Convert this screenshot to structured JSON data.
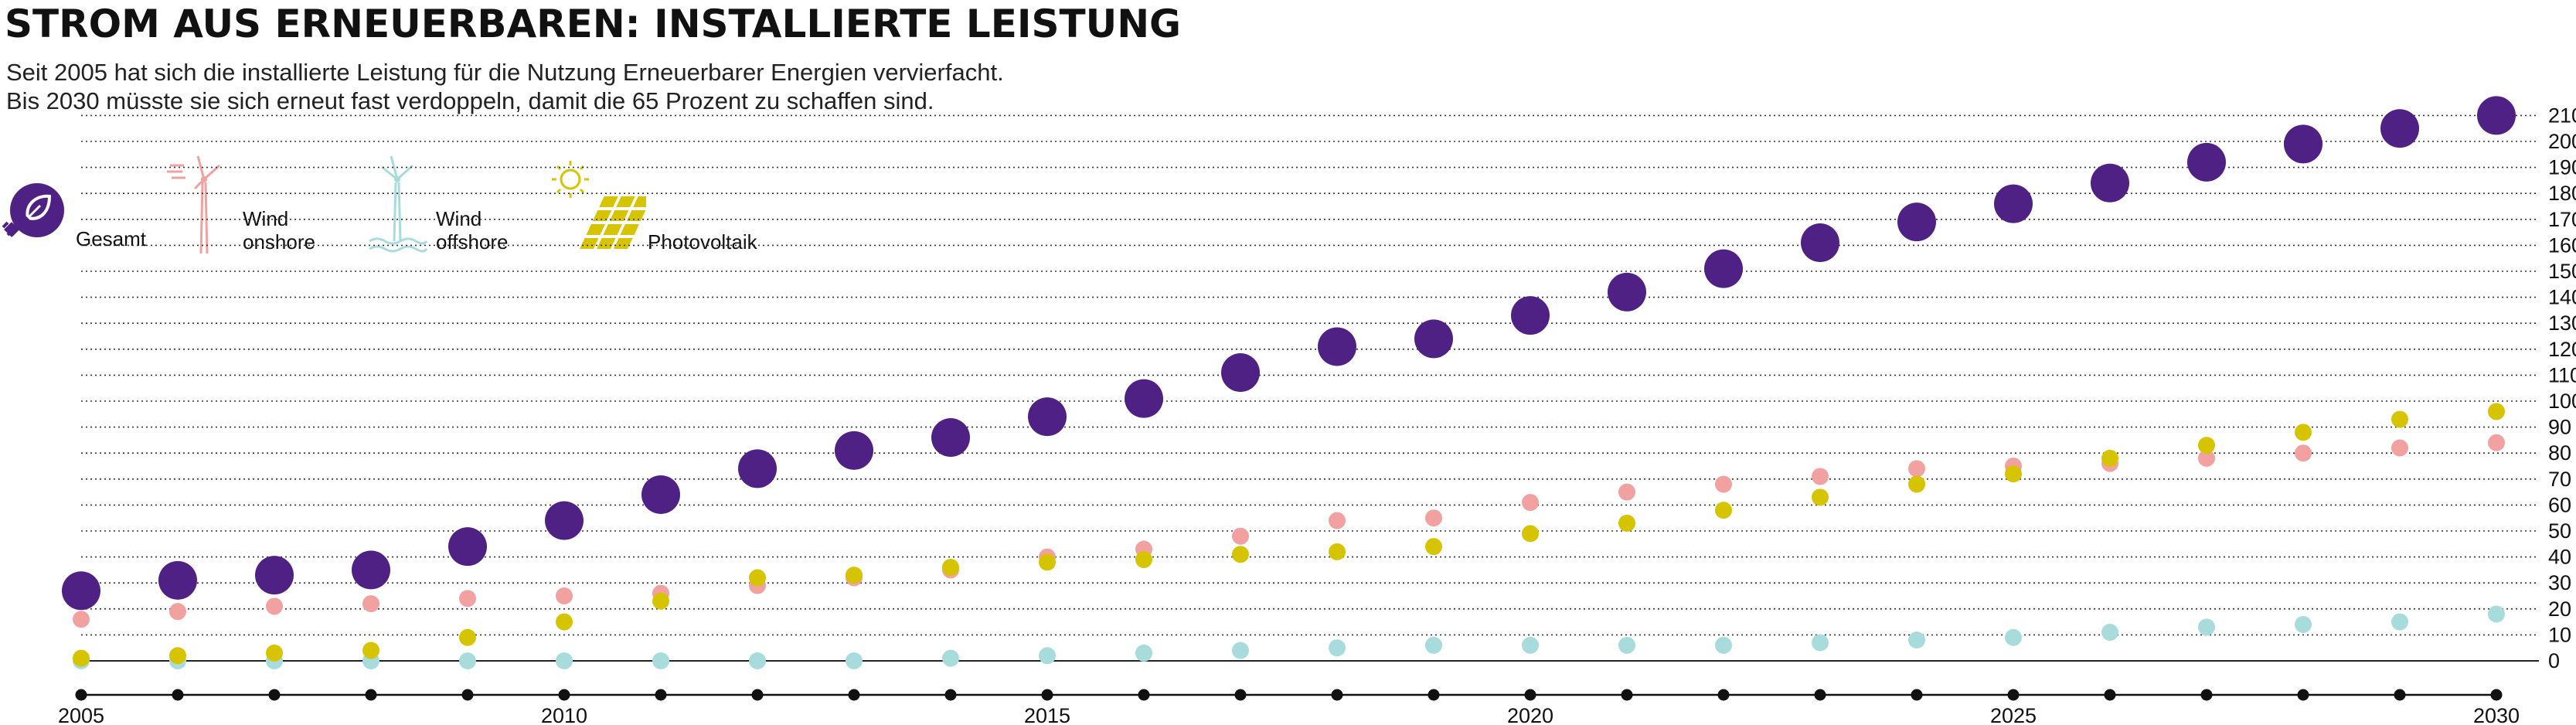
{
  "title": "STROM AUS ERNEUERBAREN: INSTALLIERTE LEISTUNG",
  "subtitle_lines": [
    "Seit 2005 hat sich die installierte Leistung für die Nutzung Erneuerbarer Energien vervierfacht.",
    "Bis 2030 müsste sie sich erneut fast verdoppeln, damit die 65 Prozent zu schaffen sind."
  ],
  "legend": {
    "gesamt": {
      "label": "Gesamt",
      "icon": "plug-leaf-icon",
      "color": "#4f2184"
    },
    "wind_onshore": {
      "label_line1": "Wind",
      "label_line2": "onshore",
      "icon": "wind-turbine-icon",
      "color": "#f2a1a1"
    },
    "wind_offshore": {
      "label_line1": "Wind",
      "label_line2": "offshore",
      "icon": "offshore-wind-turbine-icon",
      "color": "#a8dcdc"
    },
    "photovoltaik": {
      "label": "Photovoltaik",
      "icon": "solar-panel-icon",
      "color": "#d6c400"
    }
  },
  "chart_data": {
    "type": "scatter",
    "x": [
      2005,
      2006,
      2007,
      2008,
      2009,
      2010,
      2011,
      2012,
      2013,
      2014,
      2015,
      2016,
      2017,
      2018,
      2019,
      2020,
      2021,
      2022,
      2023,
      2024,
      2025,
      2026,
      2027,
      2028,
      2029,
      2030
    ],
    "x_ticks": [
      "2005",
      "2010",
      "2015",
      "2020",
      "2025",
      "2030"
    ],
    "y_ticks": [
      0,
      10,
      20,
      30,
      40,
      50,
      60,
      70,
      80,
      90,
      100,
      110,
      120,
      130,
      140,
      150,
      160,
      170,
      180,
      190,
      200,
      210
    ],
    "ylim": [
      0,
      210
    ],
    "grid": "dotted horizontal lines",
    "series": [
      {
        "name": "Gesamt",
        "color": "#4f2184",
        "values": [
          27,
          31,
          33,
          35,
          44,
          54,
          64,
          74,
          81,
          86,
          94,
          101,
          111,
          121,
          124,
          133,
          142,
          151,
          161,
          169,
          176,
          184,
          192,
          199,
          205,
          210
        ]
      },
      {
        "name": "Wind onshore",
        "color": "#f2a1a1",
        "values": [
          16,
          19,
          21,
          22,
          24,
          25,
          26,
          29,
          32,
          35,
          40,
          43,
          48,
          54,
          55,
          61,
          65,
          68,
          71,
          74,
          75,
          76,
          78,
          80,
          82,
          84
        ]
      },
      {
        "name": "Wind offshore",
        "color": "#a8dcdc",
        "values": [
          0,
          0,
          0,
          0,
          0,
          0,
          0,
          0,
          0,
          1,
          2,
          3,
          4,
          5,
          6,
          6,
          6,
          6,
          7,
          8,
          9,
          11,
          13,
          14,
          15,
          18
        ]
      },
      {
        "name": "Photovoltaik",
        "color": "#d6c400",
        "values": [
          1,
          2,
          3,
          4,
          9,
          15,
          23,
          32,
          33,
          36,
          38,
          39,
          41,
          42,
          44,
          49,
          53,
          58,
          63,
          68,
          72,
          78,
          83,
          88,
          93,
          96
        ]
      }
    ]
  }
}
